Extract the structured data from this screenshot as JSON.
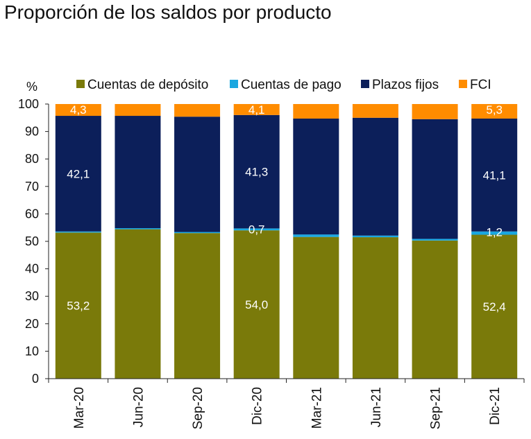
{
  "chart_data": {
    "type": "bar",
    "stacked": true,
    "title": "Proporción de los saldos por producto",
    "ylabel": "%",
    "xlabel": "",
    "ylim": [
      0,
      100
    ],
    "yticks": [
      0,
      10,
      20,
      30,
      40,
      50,
      60,
      70,
      80,
      90,
      100
    ],
    "categories": [
      "Mar-20",
      "Jun-20",
      "Sep-20",
      "Dic-20",
      "Mar-21",
      "Jun-21",
      "Sep-21",
      "Dic-21"
    ],
    "legend_position": "top",
    "series": [
      {
        "name": "Cuentas de depósito",
        "color": "#7a7a0a",
        "values": [
          53.2,
          54.4,
          53.0,
          54.0,
          51.6,
          51.5,
          50.3,
          52.4
        ]
      },
      {
        "name": "Cuentas de pago",
        "color": "#1aa7e0",
        "values": [
          0.4,
          0.4,
          0.4,
          0.7,
          0.9,
          0.6,
          0.6,
          1.2
        ]
      },
      {
        "name": "Plazos  fijos",
        "color": "#0c1f5a",
        "values": [
          42.1,
          40.9,
          42.0,
          41.3,
          42.2,
          42.9,
          43.6,
          41.1
        ]
      },
      {
        "name": "FCI",
        "color": "#ff8c00",
        "values": [
          4.3,
          4.3,
          4.6,
          4.1,
          5.3,
          5.0,
          5.5,
          5.3
        ]
      }
    ],
    "data_labels": [
      {
        "category": "Mar-20",
        "series": "Cuentas de depósito",
        "text": "53,2"
      },
      {
        "category": "Mar-20",
        "series": "Plazos  fijos",
        "text": "42,1"
      },
      {
        "category": "Mar-20",
        "series": "FCI",
        "text": "4,3"
      },
      {
        "category": "Dic-20",
        "series": "Cuentas de depósito",
        "text": "54,0"
      },
      {
        "category": "Dic-20",
        "series": "Cuentas de pago",
        "text": "0,7"
      },
      {
        "category": "Dic-20",
        "series": "Plazos  fijos",
        "text": "41,3"
      },
      {
        "category": "Dic-20",
        "series": "FCI",
        "text": "4,1"
      },
      {
        "category": "Dic-21",
        "series": "Cuentas de depósito",
        "text": "52,4"
      },
      {
        "category": "Dic-21",
        "series": "Cuentas de pago",
        "text": "1,2"
      },
      {
        "category": "Dic-21",
        "series": "Plazos  fijos",
        "text": "41,1"
      },
      {
        "category": "Dic-21",
        "series": "FCI",
        "text": "5,3"
      }
    ]
  }
}
